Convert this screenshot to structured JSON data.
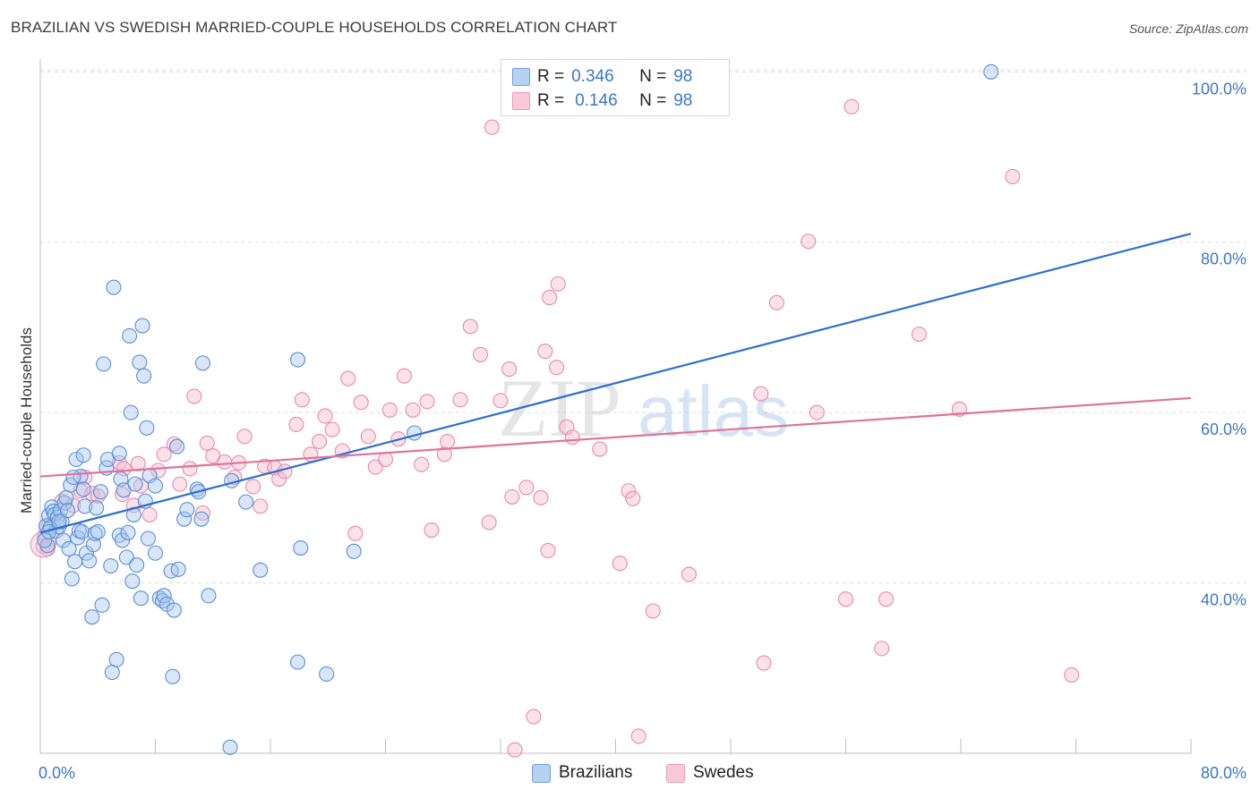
{
  "title": "BRAZILIAN VS SWEDISH MARRIED-COUPLE HOUSEHOLDS CORRELATION CHART",
  "source": "Source: ZipAtlas.com",
  "watermark": {
    "zip": "ZIP",
    "atlas": "atlas"
  },
  "legend": {
    "r_label": "R =",
    "n_label": "N =",
    "brazilians": {
      "r": "0.346",
      "n": "98"
    },
    "swedes": {
      "r": "0.146",
      "n": "98"
    }
  },
  "colors": {
    "brazilians_fill": "#a9c8f0",
    "brazilians_stroke": "#5b8fd6",
    "brazilians_line": "#2f6fd0",
    "swedes_fill": "#f7bcd0",
    "swedes_stroke": "#e98aaa",
    "swedes_line": "#e0729b",
    "axis_label": "#3a78c9",
    "grid": "#dcdcdc"
  },
  "chart_data": {
    "type": "scatter",
    "title": "BRAZILIAN VS SWEDISH MARRIED-COUPLE HOUSEHOLDS CORRELATION CHART",
    "xlabel": "",
    "ylabel": "Married-couple Households",
    "xlim": [
      0,
      80
    ],
    "ylim": [
      20,
      101.5
    ],
    "x_tick_labels": [
      "0.0%",
      "80.0%"
    ],
    "y_ticks": [
      40,
      60,
      80,
      100
    ],
    "y_tick_labels": [
      "40.0%",
      "60.0%",
      "80.0%",
      "100.0%"
    ],
    "grid": true,
    "legend_position": "top-center",
    "series": [
      {
        "name": "Brazilians",
        "trend": {
          "x0": 0,
          "y0": 45.9,
          "x1": 80,
          "y1": 81.0
        },
        "points": [
          [
            0.4,
            46.7
          ],
          [
            0.5,
            44.4
          ],
          [
            0.6,
            47.9
          ],
          [
            0.7,
            46.5
          ],
          [
            0.8,
            48.9
          ],
          [
            0.9,
            48.4
          ],
          [
            1.0,
            48.0
          ],
          [
            1.1,
            46.1
          ],
          [
            1.2,
            47.7
          ],
          [
            1.3,
            46.6
          ],
          [
            1.4,
            48.5
          ],
          [
            1.5,
            47.2
          ],
          [
            1.6,
            45.0
          ],
          [
            1.7,
            49.4
          ],
          [
            1.8,
            50.0
          ],
          [
            1.9,
            48.5
          ],
          [
            2.0,
            44.0
          ],
          [
            2.1,
            51.5
          ],
          [
            2.2,
            40.5
          ],
          [
            2.4,
            42.5
          ],
          [
            2.5,
            54.5
          ],
          [
            2.6,
            45.3
          ],
          [
            2.7,
            46.1
          ],
          [
            2.8,
            52.5
          ],
          [
            2.9,
            46.0
          ],
          [
            3.0,
            51.0
          ],
          [
            3.1,
            49.0
          ],
          [
            3.2,
            43.5
          ],
          [
            3.4,
            42.6
          ],
          [
            3.6,
            36.0
          ],
          [
            3.7,
            44.5
          ],
          [
            3.8,
            45.8
          ],
          [
            3.9,
            48.8
          ],
          [
            4.0,
            46.0
          ],
          [
            4.2,
            50.7
          ],
          [
            4.3,
            37.4
          ],
          [
            4.4,
            65.7
          ],
          [
            4.6,
            53.5
          ],
          [
            4.7,
            54.5
          ],
          [
            4.9,
            42.0
          ],
          [
            5.0,
            29.5
          ],
          [
            5.1,
            74.7
          ],
          [
            5.3,
            31.0
          ],
          [
            5.5,
            45.6
          ],
          [
            5.6,
            52.2
          ],
          [
            5.7,
            45.0
          ],
          [
            5.8,
            50.9
          ],
          [
            6.0,
            43.0
          ],
          [
            6.1,
            45.9
          ],
          [
            6.2,
            69.0
          ],
          [
            6.3,
            60.0
          ],
          [
            6.4,
            40.2
          ],
          [
            6.5,
            48.0
          ],
          [
            6.6,
            51.6
          ],
          [
            6.7,
            42.1
          ],
          [
            6.9,
            65.9
          ],
          [
            7.0,
            38.2
          ],
          [
            7.1,
            70.2
          ],
          [
            7.2,
            64.3
          ],
          [
            7.3,
            49.6
          ],
          [
            7.4,
            58.2
          ],
          [
            7.5,
            45.2
          ],
          [
            8.0,
            43.5
          ],
          [
            8.3,
            38.2
          ],
          [
            8.5,
            37.9
          ],
          [
            8.6,
            38.5
          ],
          [
            8.8,
            37.5
          ],
          [
            9.1,
            41.4
          ],
          [
            9.2,
            29.0
          ],
          [
            9.3,
            36.8
          ],
          [
            9.6,
            41.6
          ],
          [
            10.0,
            47.5
          ],
          [
            10.2,
            48.6
          ],
          [
            10.9,
            51.0
          ],
          [
            11.3,
            65.8
          ],
          [
            11.2,
            47.5
          ],
          [
            11.0,
            50.7
          ],
          [
            11.7,
            38.5
          ],
          [
            13.2,
            20.7
          ],
          [
            13.3,
            52.0
          ],
          [
            14.3,
            49.5
          ],
          [
            15.3,
            41.5
          ],
          [
            17.9,
            30.7
          ],
          [
            17.9,
            66.2
          ],
          [
            18.1,
            44.1
          ],
          [
            19.9,
            29.3
          ],
          [
            21.8,
            43.7
          ],
          [
            26.0,
            57.6
          ],
          [
            9.5,
            56.0
          ],
          [
            5.5,
            55.2
          ],
          [
            7.6,
            52.6
          ],
          [
            3.0,
            55.0
          ],
          [
            2.3,
            52.4
          ],
          [
            8.0,
            51.4
          ],
          [
            0.3,
            45.0
          ],
          [
            0.6,
            46.0
          ],
          [
            1.3,
            47.2
          ],
          [
            66.1,
            100.0
          ]
        ]
      },
      {
        "name": "Swedes",
        "trend": {
          "x0": 0,
          "y0": 52.5,
          "x1": 80,
          "y1": 61.7
        },
        "points": [
          [
            0.2,
            44.3
          ],
          [
            0.3,
            45.6
          ],
          [
            0.6,
            46.8
          ],
          [
            1.5,
            49.6
          ],
          [
            2.3,
            49.1
          ],
          [
            2.8,
            50.8
          ],
          [
            3.1,
            52.4
          ],
          [
            3.6,
            50.5
          ],
          [
            4.0,
            50.2
          ],
          [
            5.5,
            54.1
          ],
          [
            5.7,
            50.4
          ],
          [
            5.8,
            53.4
          ],
          [
            6.5,
            49.1
          ],
          [
            6.8,
            54.0
          ],
          [
            7.0,
            51.4
          ],
          [
            7.6,
            48.0
          ],
          [
            8.2,
            53.2
          ],
          [
            8.6,
            55.1
          ],
          [
            9.3,
            56.3
          ],
          [
            9.7,
            51.6
          ],
          [
            10.4,
            53.4
          ],
          [
            10.7,
            61.9
          ],
          [
            11.3,
            48.2
          ],
          [
            11.6,
            56.4
          ],
          [
            12.0,
            54.9
          ],
          [
            12.8,
            54.2
          ],
          [
            13.5,
            52.4
          ],
          [
            13.8,
            54.1
          ],
          [
            14.2,
            57.2
          ],
          [
            14.8,
            51.3
          ],
          [
            15.3,
            49.0
          ],
          [
            15.6,
            53.7
          ],
          [
            16.3,
            53.5
          ],
          [
            16.6,
            52.2
          ],
          [
            17.0,
            53.1
          ],
          [
            17.8,
            58.6
          ],
          [
            18.2,
            61.5
          ],
          [
            18.8,
            55.1
          ],
          [
            19.4,
            56.6
          ],
          [
            19.8,
            59.6
          ],
          [
            20.3,
            58.0
          ],
          [
            21.0,
            55.5
          ],
          [
            21.4,
            64.0
          ],
          [
            21.9,
            45.8
          ],
          [
            22.3,
            61.2
          ],
          [
            22.8,
            57.2
          ],
          [
            23.3,
            53.6
          ],
          [
            24.0,
            54.5
          ],
          [
            24.3,
            60.3
          ],
          [
            24.9,
            56.9
          ],
          [
            25.3,
            64.3
          ],
          [
            25.9,
            60.3
          ],
          [
            26.5,
            53.9
          ],
          [
            26.9,
            61.3
          ],
          [
            27.2,
            46.2
          ],
          [
            28.1,
            55.1
          ],
          [
            28.3,
            56.6
          ],
          [
            29.2,
            61.5
          ],
          [
            29.9,
            70.1
          ],
          [
            30.6,
            66.8
          ],
          [
            31.2,
            47.1
          ],
          [
            31.4,
            93.5
          ],
          [
            32.0,
            61.4
          ],
          [
            32.6,
            65.1
          ],
          [
            32.8,
            50.1
          ],
          [
            33.0,
            20.4
          ],
          [
            33.8,
            51.2
          ],
          [
            34.3,
            24.3
          ],
          [
            34.8,
            50.0
          ],
          [
            35.1,
            67.2
          ],
          [
            35.3,
            43.8
          ],
          [
            35.4,
            73.5
          ],
          [
            35.9,
            65.3
          ],
          [
            36.0,
            75.1
          ],
          [
            36.6,
            58.3
          ],
          [
            37.0,
            57.1
          ],
          [
            38.9,
            55.7
          ],
          [
            40.3,
            42.3
          ],
          [
            40.9,
            50.8
          ],
          [
            41.2,
            49.9
          ],
          [
            41.6,
            22.0
          ],
          [
            42.6,
            36.7
          ],
          [
            43.0,
            100.0
          ],
          [
            45.1,
            41.0
          ],
          [
            50.1,
            62.2
          ],
          [
            50.3,
            30.6
          ],
          [
            51.2,
            72.9
          ],
          [
            53.4,
            80.1
          ],
          [
            54.0,
            60.0
          ],
          [
            56.0,
            38.1
          ],
          [
            56.4,
            95.9
          ],
          [
            58.5,
            32.3
          ],
          [
            58.8,
            38.1
          ],
          [
            61.1,
            69.2
          ],
          [
            63.9,
            60.4
          ],
          [
            67.6,
            87.7
          ],
          [
            71.7,
            29.2
          ],
          [
            0.5,
            44.0
          ]
        ]
      }
    ]
  },
  "bottom_legend": {
    "brazilians": "Brazilians",
    "swedes": "Swedes"
  }
}
